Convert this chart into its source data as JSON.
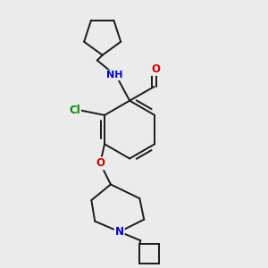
{
  "bg_color": "#ebebeb",
  "bond_color": "#1a1a1a",
  "atom_colors": {
    "N": "#0000cc",
    "O": "#cc0000",
    "Cl": "#008800",
    "C": "#1a1a1a"
  },
  "font_size": 8.5,
  "bond_width": 1.4
}
